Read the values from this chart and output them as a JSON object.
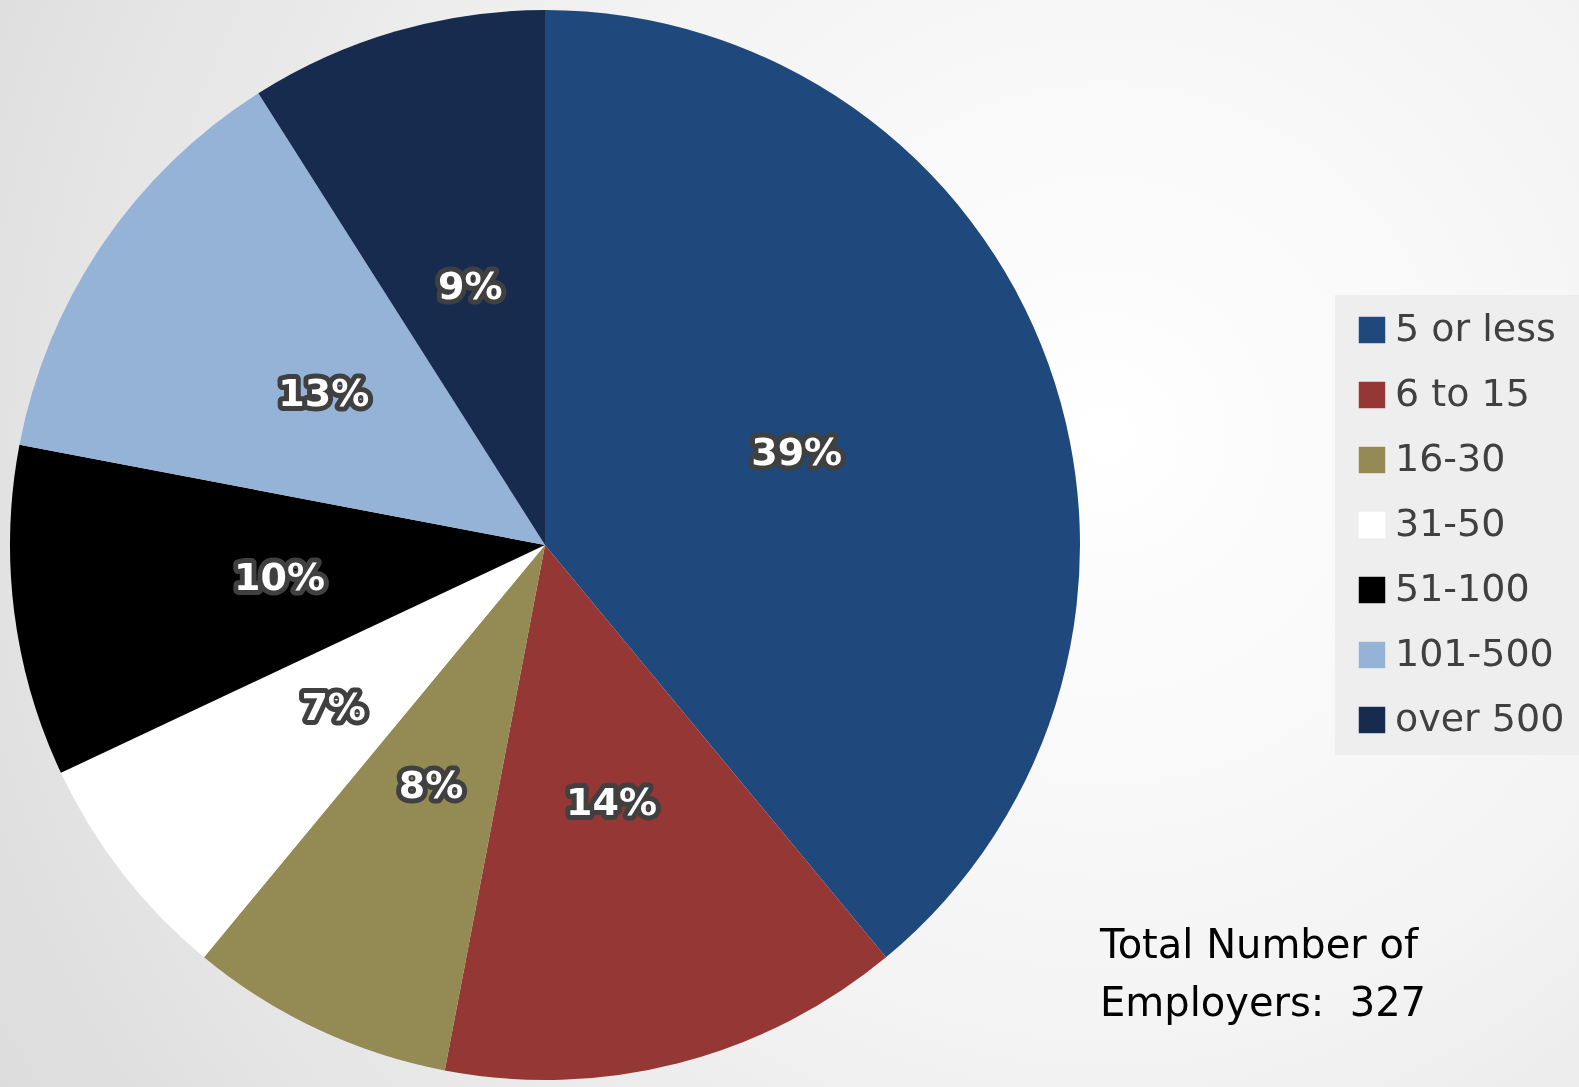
{
  "chart_data": {
    "type": "pie",
    "categories": [
      "5 or less",
      "6 to 15",
      "16-30",
      "31-50",
      "51-100",
      "101-500",
      "over 500"
    ],
    "values": [
      39,
      14,
      8,
      7,
      10,
      13,
      9
    ],
    "colors": [
      "#1f497d",
      "#953735",
      "#948a54",
      "#ffffff",
      "#000000",
      "#95b3d7",
      "#162b4d"
    ],
    "value_labels": [
      "39%",
      "14%",
      "8%",
      "7%",
      "10%",
      "13%",
      "9%"
    ],
    "legend": "right",
    "annotations": [
      "Total Number of\nEmployers:  327"
    ]
  }
}
